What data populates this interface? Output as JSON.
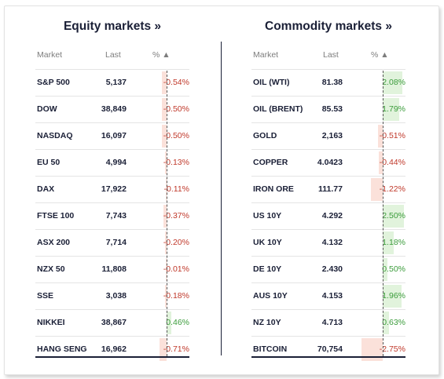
{
  "equity": {
    "title": "Equity markets »",
    "headers": {
      "market": "Market",
      "last": "Last",
      "pct": "% ▲"
    },
    "rows": [
      {
        "name": "S&P 500",
        "last": "5,137",
        "pct": "-0.54%",
        "value": -0.54
      },
      {
        "name": "DOW",
        "last": "38,849",
        "pct": "-0.50%",
        "value": -0.5
      },
      {
        "name": "NASDAQ",
        "last": "16,097",
        "pct": "-0.50%",
        "value": -0.5
      },
      {
        "name": "EU 50",
        "last": "4,994",
        "pct": "-0.13%",
        "value": -0.13
      },
      {
        "name": "DAX",
        "last": "17,922",
        "pct": "-0.11%",
        "value": -0.11
      },
      {
        "name": "FTSE 100",
        "last": "7,743",
        "pct": "-0.37%",
        "value": -0.37
      },
      {
        "name": "ASX 200",
        "last": "7,714",
        "pct": "-0.20%",
        "value": -0.2
      },
      {
        "name": "NZX 50",
        "last": "11,808",
        "pct": "-0.01%",
        "value": -0.01
      },
      {
        "name": "SSE",
        "last": "3,038",
        "pct": "-0.18%",
        "value": -0.18
      },
      {
        "name": "NIKKEI",
        "last": "38,867",
        "pct": "0.46%",
        "value": 0.46
      },
      {
        "name": "HANG SENG",
        "last": "16,962",
        "pct": "-0.71%",
        "value": -0.71
      }
    ]
  },
  "commodity": {
    "title": "Commodity markets »",
    "headers": {
      "market": "Market",
      "last": "Last",
      "pct": "% ▲"
    },
    "rows": [
      {
        "name": "OIL (WTI)",
        "last": "81.38",
        "pct": "2.08%",
        "value": 2.08
      },
      {
        "name": "OIL (BRENT)",
        "last": "85.53",
        "pct": "1.79%",
        "value": 1.79
      },
      {
        "name": "GOLD",
        "last": "2,163",
        "pct": "-0.51%",
        "value": -0.51
      },
      {
        "name": "COPPER",
        "last": "4.0423",
        "pct": "-0.44%",
        "value": -0.44
      },
      {
        "name": "IRON ORE",
        "last": "111.77",
        "pct": "-1.22%",
        "value": -1.22
      },
      {
        "name": "US 10Y",
        "last": "4.292",
        "pct": "2.50%",
        "value": 2.5
      },
      {
        "name": "UK 10Y",
        "last": "4.132",
        "pct": "1.18%",
        "value": 1.18
      },
      {
        "name": "DE 10Y",
        "last": "2.430",
        "pct": "0.50%",
        "value": 0.5
      },
      {
        "name": "AUS 10Y",
        "last": "4.153",
        "pct": "1.96%",
        "value": 1.96
      },
      {
        "name": "NZ 10Y",
        "last": "4.713",
        "pct": "0.63%",
        "value": 0.63
      },
      {
        "name": "BITCOIN",
        "last": "70,754",
        "pct": "-2.75%",
        "value": -2.75
      }
    ]
  },
  "colors": {
    "positive": "#3b9c3b",
    "negative": "#c0392b",
    "title": "#1a1f36"
  }
}
